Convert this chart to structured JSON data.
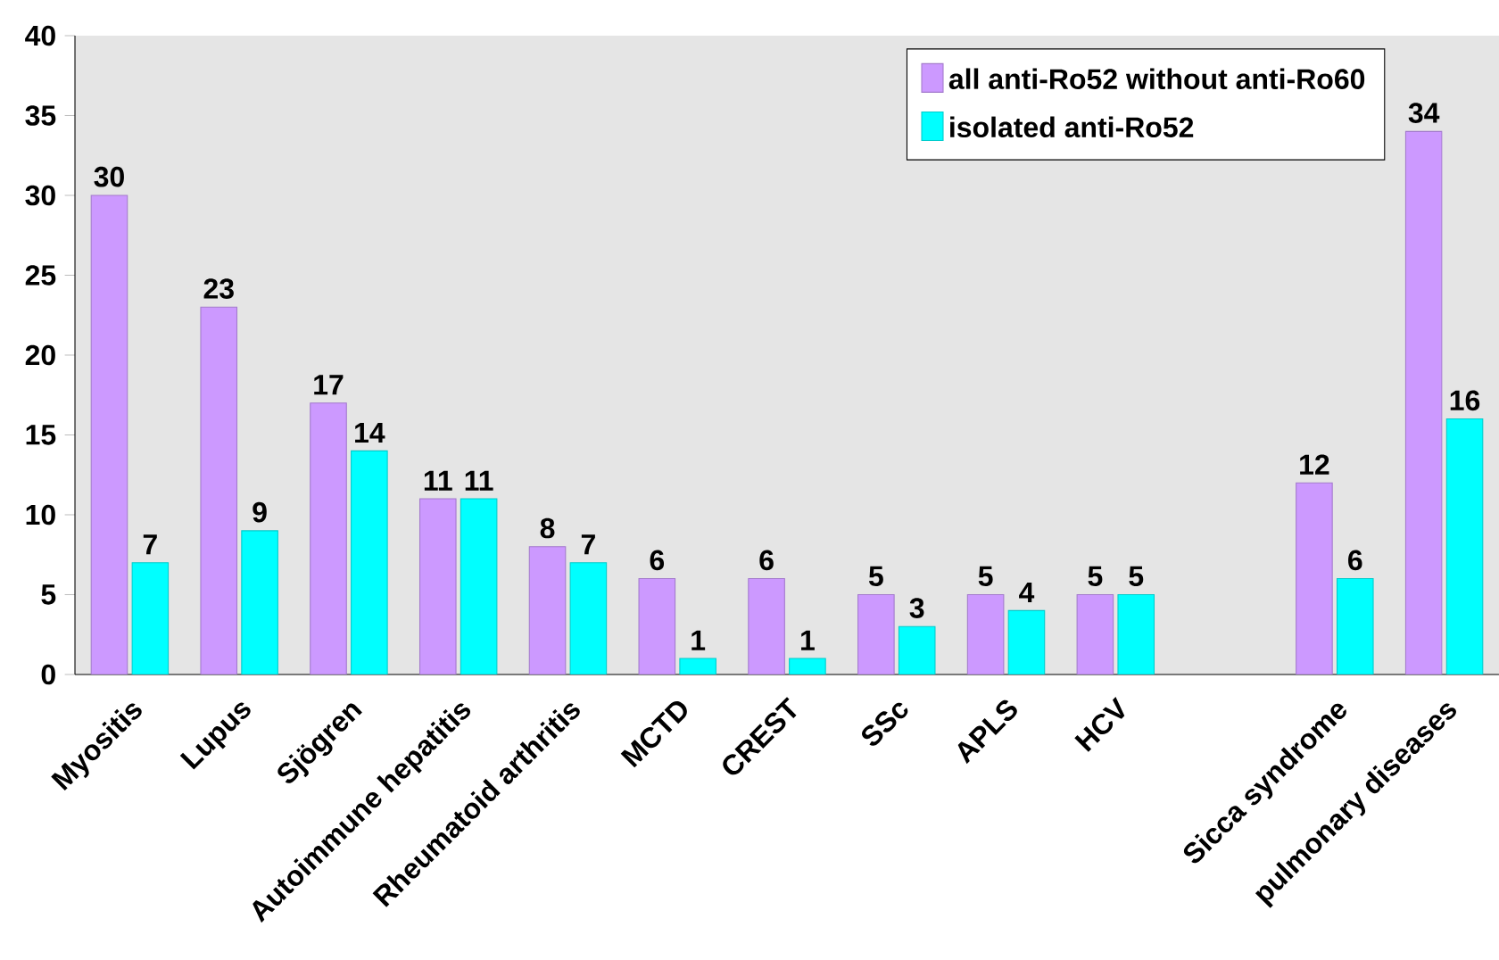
{
  "chart_data": {
    "type": "bar",
    "categories": [
      "Myositis",
      "Lupus",
      "Sjögren",
      "Autoimmune hepatitis",
      "Rheumatoid arthritis",
      "MCTD",
      "CREST",
      "SSc",
      "APLS",
      "HCV",
      null,
      "Sicca syndrome",
      "pulmonary diseases"
    ],
    "series": [
      {
        "name": "all anti-Ro52 without anti-Ro60",
        "color": "#cc99ff",
        "values": [
          30,
          23,
          17,
          11,
          8,
          6,
          6,
          5,
          5,
          5,
          null,
          12,
          34
        ]
      },
      {
        "name": "isolated anti-Ro52",
        "color": "#00ffff",
        "values": [
          7,
          9,
          14,
          11,
          7,
          1,
          1,
          3,
          4,
          5,
          null,
          6,
          16
        ]
      }
    ],
    "ylim": [
      0,
      40
    ],
    "yticks": [
      0,
      5,
      10,
      15,
      20,
      25,
      30,
      35,
      40
    ],
    "data_labels": true,
    "legend": "top right",
    "grid": false
  }
}
